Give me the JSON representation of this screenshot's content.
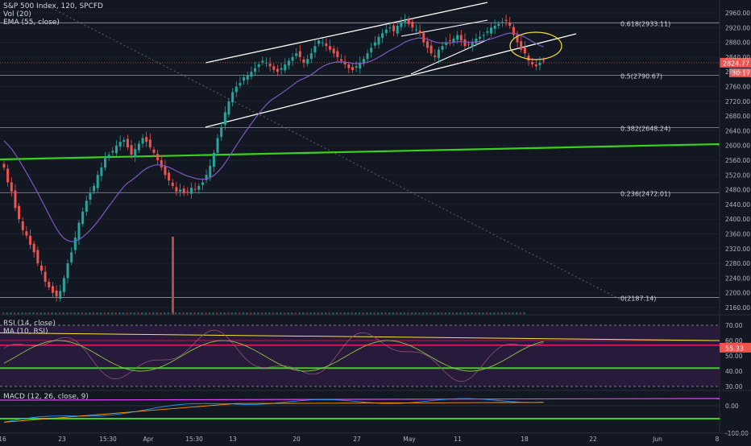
{
  "chart_data": {
    "type": "candlestick",
    "symbol_header": "S&P 500 Index, 120, SPCFD",
    "indicators_main": [
      "Vol (20)",
      "EMA (55, close)"
    ],
    "y_ticks": [
      "2960.00",
      "2920.00",
      "2880.00",
      "2840.00",
      "2800.00",
      "2760.00",
      "2720.00",
      "2680.00",
      "2640.00",
      "2600.00",
      "2560.00",
      "2520.00",
      "2480.00",
      "2440.00",
      "2400.00",
      "2360.00",
      "2320.00",
      "2280.00",
      "2240.00",
      "2200.00",
      "2160.00"
    ],
    "y_range": [
      2160,
      2970
    ],
    "last_price_label": "2824.77",
    "countdown_label": "30:17",
    "fib_levels": [
      {
        "label": "0.618(2933.11)",
        "value": 2933.11
      },
      {
        "label": "0.5(2790.67)",
        "value": 2790.67
      },
      {
        "label": "0.382(2648.24)",
        "value": 2648.24
      },
      {
        "label": "0.236(2472.01)",
        "value": 2472.01
      },
      {
        "label": "0(2187.14)",
        "value": 2187.14
      }
    ],
    "x_ticks": [
      "16",
      "23",
      "15:30",
      "Apr",
      "15:30",
      "13",
      "20",
      "27",
      "May",
      "11",
      "18",
      "22",
      "Jun",
      "8"
    ],
    "candles_close": [
      2540,
      2500,
      2475,
      2430,
      2400,
      2370,
      2355,
      2330,
      2310,
      2280,
      2260,
      2230,
      2215,
      2200,
      2190,
      2205,
      2240,
      2280,
      2310,
      2350,
      2390,
      2420,
      2450,
      2470,
      2490,
      2520,
      2540,
      2565,
      2575,
      2585,
      2600,
      2610,
      2615,
      2595,
      2575,
      2590,
      2605,
      2620,
      2610,
      2595,
      2580,
      2560,
      2540,
      2520,
      2505,
      2490,
      2475,
      2480,
      2470,
      2475,
      2485,
      2480,
      2490,
      2500,
      2520,
      2545,
      2580,
      2620,
      2650,
      2690,
      2720,
      2745,
      2760,
      2770,
      2785,
      2790,
      2800,
      2810,
      2820,
      2830,
      2825,
      2815,
      2805,
      2800,
      2810,
      2820,
      2830,
      2840,
      2850,
      2840,
      2825,
      2835,
      2850,
      2870,
      2885,
      2880,
      2870,
      2860,
      2850,
      2840,
      2830,
      2820,
      2810,
      2805,
      2815,
      2825,
      2835,
      2850,
      2865,
      2880,
      2895,
      2905,
      2915,
      2920,
      2910,
      2925,
      2935,
      2940,
      2930,
      2920,
      2915,
      2905,
      2880,
      2865,
      2850,
      2840,
      2860,
      2870,
      2880,
      2885,
      2890,
      2900,
      2885,
      2870,
      2875,
      2880,
      2890,
      2895,
      2900,
      2910,
      2920,
      2925,
      2930,
      2935,
      2938,
      2925,
      2900,
      2880,
      2860,
      2850,
      2830,
      2820,
      2815,
      2825,
      2830
    ],
    "rsi": {
      "header": "RSI (14, close)",
      "ma_header": "MA (10, RSI)",
      "y_ticks": [
        "70.00",
        "60.00",
        "50.00",
        "40.00",
        "30.00"
      ],
      "last_label": "55.33"
    },
    "macd": {
      "header": "MACD (12, 26, close, 9)",
      "y_ticks": [
        "0.00",
        "-100.00"
      ]
    }
  }
}
